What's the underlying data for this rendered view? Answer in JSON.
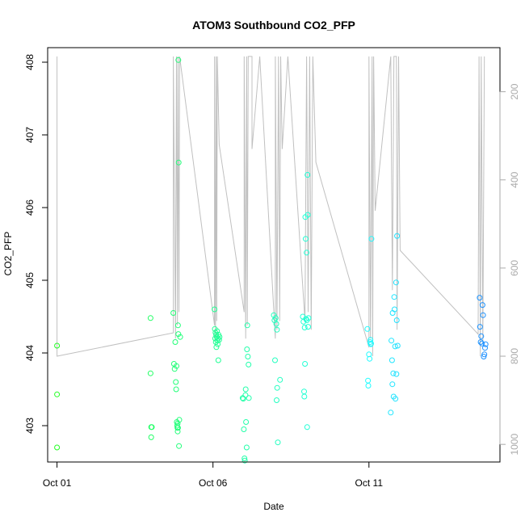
{
  "chart_data": {
    "type": "scatter",
    "title": "ATOM3 Southbound CO2_PFP",
    "xlabel": "Date",
    "ylabel": "CO2_PFP",
    "x_ticks": [
      {
        "day": 1,
        "label": "Oct 01"
      },
      {
        "day": 6,
        "label": "Oct 06"
      },
      {
        "day": 11,
        "label": "Oct 11"
      }
    ],
    "xlim_days": [
      0.7,
      15.2
    ],
    "ylim": [
      402.5,
      408.2
    ],
    "y_ticks": [
      403,
      404,
      405,
      406,
      407,
      408
    ],
    "y2_ticks": [
      200,
      400,
      600,
      800,
      1000
    ],
    "y2lim_inverted": [
      100,
      1040
    ],
    "grid": false,
    "legend": "none",
    "colors": {
      "altitude_line": "#c0c0c0",
      "right_axis": "#aaaaaa",
      "point_scale": [
        "#22ff22",
        "#22ffff",
        "#1e90ff"
      ]
    },
    "altitude_profile": [
      [
        1.0,
        120
      ],
      [
        1.0,
        800
      ],
      [
        4.73,
        747
      ],
      [
        4.73,
        120
      ],
      [
        4.8,
        760
      ],
      [
        4.83,
        120
      ],
      [
        4.86,
        730
      ],
      [
        4.88,
        120
      ],
      [
        4.91,
        700
      ],
      [
        4.93,
        120
      ],
      [
        6.05,
        730
      ],
      [
        6.05,
        120
      ],
      [
        6.08,
        760
      ],
      [
        6.1,
        120
      ],
      [
        6.12,
        720
      ],
      [
        6.14,
        120
      ],
      [
        6.2,
        320
      ],
      [
        7.0,
        700
      ],
      [
        7.0,
        120
      ],
      [
        7.05,
        760
      ],
      [
        7.08,
        120
      ],
      [
        7.1,
        730
      ],
      [
        7.13,
        120
      ],
      [
        7.25,
        120
      ],
      [
        7.25,
        330
      ],
      [
        7.5,
        120
      ],
      [
        8.0,
        760
      ],
      [
        8.0,
        120
      ],
      [
        8.05,
        740
      ],
      [
        8.1,
        120
      ],
      [
        8.14,
        720
      ],
      [
        8.17,
        120
      ],
      [
        8.22,
        330
      ],
      [
        8.4,
        120
      ],
      [
        8.95,
        720
      ],
      [
        9.0,
        120
      ],
      [
        9.05,
        700
      ],
      [
        9.1,
        120
      ],
      [
        9.15,
        740
      ],
      [
        9.2,
        120
      ],
      [
        9.3,
        360
      ],
      [
        11.0,
        780
      ],
      [
        11.0,
        120
      ],
      [
        11.05,
        760
      ],
      [
        11.1,
        120
      ],
      [
        11.12,
        800
      ],
      [
        11.15,
        120
      ],
      [
        11.2,
        470
      ],
      [
        11.7,
        120
      ],
      [
        11.75,
        650
      ],
      [
        11.8,
        120
      ],
      [
        11.88,
        120
      ],
      [
        11.9,
        740
      ],
      [
        11.95,
        120
      ],
      [
        12.0,
        560
      ],
      [
        14.5,
        750
      ],
      [
        14.53,
        120
      ],
      [
        14.57,
        800
      ],
      [
        14.6,
        120
      ],
      [
        14.65,
        770
      ],
      [
        14.7,
        120
      ]
    ],
    "series": [
      {
        "x": [
          1.0,
          1.0,
          1.0,
          4.0,
          4.0,
          4.02,
          4.02,
          4.04,
          4.73,
          4.75,
          4.77,
          4.79,
          4.81,
          4.82,
          4.83,
          4.84,
          4.85,
          4.86,
          4.87,
          4.87,
          4.88,
          4.88,
          4.89,
          4.89,
          4.9,
          4.91,
          4.92,
          4.95
        ],
        "y": [
          404.1,
          403.43,
          402.7,
          404.48,
          403.72,
          402.98,
          402.84,
          402.98,
          404.55,
          403.85,
          403.78,
          404.15,
          403.6,
          403.5,
          403.82,
          403.05,
          403.0,
          402.97,
          403.03,
          402.92,
          402.97,
          404.38,
          404.26,
          408.03,
          406.62,
          402.72,
          403.08,
          404.22
        ]
      },
      {
        "x": [
          6.05,
          6.06,
          6.07,
          6.08,
          6.09,
          6.1,
          6.11,
          6.12,
          6.13,
          6.14,
          6.15,
          6.16,
          6.17,
          6.18,
          6.2,
          6.21,
          6.95,
          6.97,
          6.99,
          7.01,
          7.02,
          7.04,
          7.05,
          7.06,
          7.08,
          7.09,
          7.1,
          7.12,
          7.14,
          7.15
        ],
        "y": [
          404.6,
          404.33,
          404.2,
          404.28,
          404.15,
          404.25,
          404.08,
          404.22,
          404.3,
          404.17,
          404.12,
          404.2,
          403.9,
          404.25,
          404.18,
          404.22,
          403.38,
          403.37,
          402.95,
          402.55,
          402.52,
          403.42,
          403.5,
          403.05,
          402.7,
          404.05,
          404.38,
          403.95,
          403.84,
          403.38
        ]
      },
      {
        "x": [
          7.95,
          7.97,
          7.99,
          8.01,
          8.03,
          8.04,
          8.05,
          8.06,
          8.08,
          8.15,
          8.88,
          8.9,
          8.92,
          8.93,
          8.94,
          8.95,
          8.96,
          8.97,
          8.98,
          9.0,
          9.01,
          9.02,
          9.03,
          9.04,
          9.05,
          9.06
        ],
        "y": [
          404.52,
          404.45,
          403.9,
          404.48,
          404.4,
          403.35,
          404.32,
          403.52,
          402.77,
          403.63,
          404.5,
          404.43,
          403.47,
          403.4,
          404.35,
          403.85,
          405.87,
          405.57,
          404.47,
          405.38,
          404.45,
          402.98,
          406.45,
          405.9,
          404.36,
          404.48
        ]
      },
      {
        "x": [
          10.95,
          10.97,
          10.98,
          11.0,
          11.02,
          11.04,
          11.05,
          11.06,
          11.07,
          11.08,
          11.7,
          11.72,
          11.74,
          11.75,
          11.76,
          11.78,
          11.79,
          11.81,
          11.82,
          11.84,
          11.85,
          11.87,
          11.88,
          11.89,
          11.9,
          11.92
        ],
        "y": [
          404.33,
          403.62,
          403.55,
          403.98,
          403.92,
          404.15,
          404.18,
          404.12,
          404.13,
          405.57,
          403.18,
          404.17,
          403.9,
          403.57,
          404.55,
          403.72,
          403.4,
          404.77,
          404.6,
          404.09,
          403.37,
          404.97,
          403.71,
          404.45,
          405.61,
          404.1
        ]
      },
      {
        "x": [
          14.55,
          14.56,
          14.58,
          14.6,
          14.62,
          14.64,
          14.66,
          14.68,
          14.7,
          14.72,
          14.74
        ],
        "y": [
          404.76,
          404.36,
          404.15,
          404.23,
          404.13,
          404.66,
          404.52,
          403.95,
          403.98,
          404.07,
          404.12
        ]
      }
    ]
  }
}
